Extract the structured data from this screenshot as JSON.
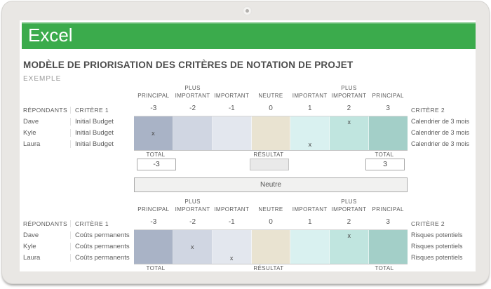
{
  "app": {
    "brand": "Excel",
    "accent_green": "#3BAB4C"
  },
  "document": {
    "title": "MODÈLE DE PRIORISATION DES CRITÈRES DE NOTATION DE PROJET",
    "subtitle": "EXEMPLE"
  },
  "scale": {
    "labels_top": [
      "",
      "PLUS",
      "",
      "",
      "",
      "PLUS",
      ""
    ],
    "labels_main": [
      "PRINCIPAL",
      "IMPORTANT",
      "IMPORTANT",
      "NEUTRE",
      "IMPORTANT",
      "IMPORTANT",
      "PRINCIPAL"
    ],
    "values": [
      "-3",
      "-2",
      "-1",
      "0",
      "1",
      "2",
      "3"
    ],
    "colors": [
      "#A9B3C6",
      "#D0D6E2",
      "#E3E7EE",
      "#E9E3D1",
      "#D9F1F0",
      "#C0E5DF",
      "#A3CFC8"
    ]
  },
  "mark_glyph": "x",
  "tables": [
    {
      "respondents_header": "RÉPONDANTS",
      "criteria1_header": "CRITÈRE 1",
      "criteria2_header": "CRITÈRE 2",
      "rows": [
        {
          "respondent": "Dave",
          "criteria1": "Initial Budget",
          "criteria2": "Calendrier de 3 mois",
          "mark_col": 5
        },
        {
          "respondent": "Kyle",
          "criteria1": "Initial Budget",
          "criteria2": "Calendrier de 3 mois",
          "mark_col": 0
        },
        {
          "respondent": "Laura",
          "criteria1": "Initial Budget",
          "criteria2": "Calendrier de 3 mois",
          "mark_col": 4
        }
      ],
      "totals": {
        "left_label": "TOTAL",
        "left_value": "-3",
        "result_label": "RÉSULTAT",
        "result_value": "",
        "right_label": "TOTAL",
        "right_value": "3"
      },
      "outcome": "Neutre"
    },
    {
      "respondents_header": "RÉPONDANTS",
      "criteria1_header": "CRITÈRE 1",
      "criteria2_header": "CRITÈRE 2",
      "rows": [
        {
          "respondent": "Dave",
          "criteria1": "Coûts permanents",
          "criteria2": "Risques potentiels",
          "mark_col": 5
        },
        {
          "respondent": "Kyle",
          "criteria1": "Coûts permanents",
          "criteria2": "Risques potentiels",
          "mark_col": 1
        },
        {
          "respondent": "Laura",
          "criteria1": "Coûts permanents",
          "criteria2": "Risques potentiels",
          "mark_col": 2
        }
      ],
      "totals": {
        "left_label": "TOTAL",
        "result_label": "RÉSULTAT",
        "right_label": "TOTAL"
      }
    }
  ]
}
